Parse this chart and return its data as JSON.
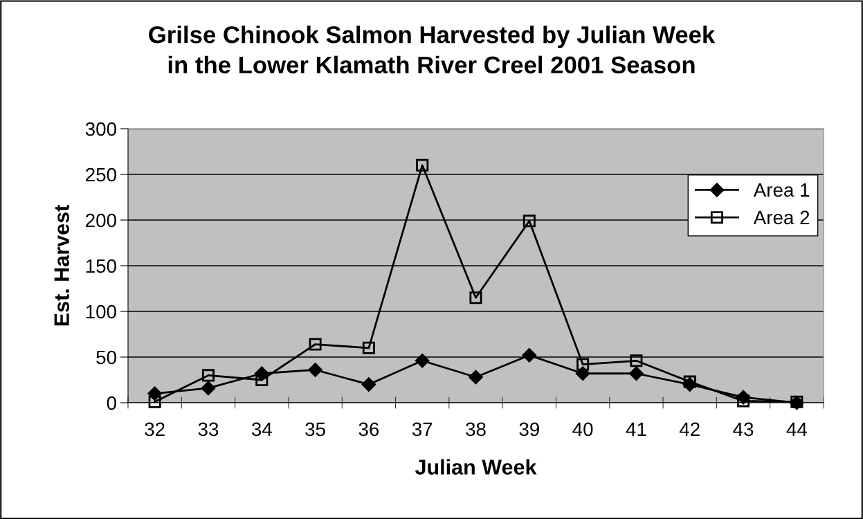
{
  "chart_data": {
    "type": "line",
    "title": "Grilse Chinook Salmon Harvested by Julian Week\nin the Lower Klamath River Creel 2001 Season",
    "xlabel": "Julian Week",
    "ylabel": "Est. Harvest",
    "categories": [
      "32",
      "33",
      "34",
      "35",
      "36",
      "37",
      "38",
      "39",
      "40",
      "41",
      "42",
      "43",
      "44"
    ],
    "series": [
      {
        "name": "Area 1",
        "color": "#000000",
        "marker": "diamond",
        "values": [
          10,
          16,
          32,
          36,
          20,
          46,
          28,
          52,
          32,
          32,
          20,
          6,
          0
        ]
      },
      {
        "name": "Area 2",
        "color": "#000000",
        "marker": "square",
        "values": [
          1,
          30,
          25,
          64,
          60,
          260,
          115,
          199,
          42,
          46,
          23,
          2,
          1
        ]
      }
    ],
    "ylim": [
      0,
      300
    ],
    "yticks": [
      0,
      50,
      100,
      150,
      200,
      250,
      300
    ],
    "grid": "y",
    "legend": "right",
    "line_style": "solid"
  }
}
